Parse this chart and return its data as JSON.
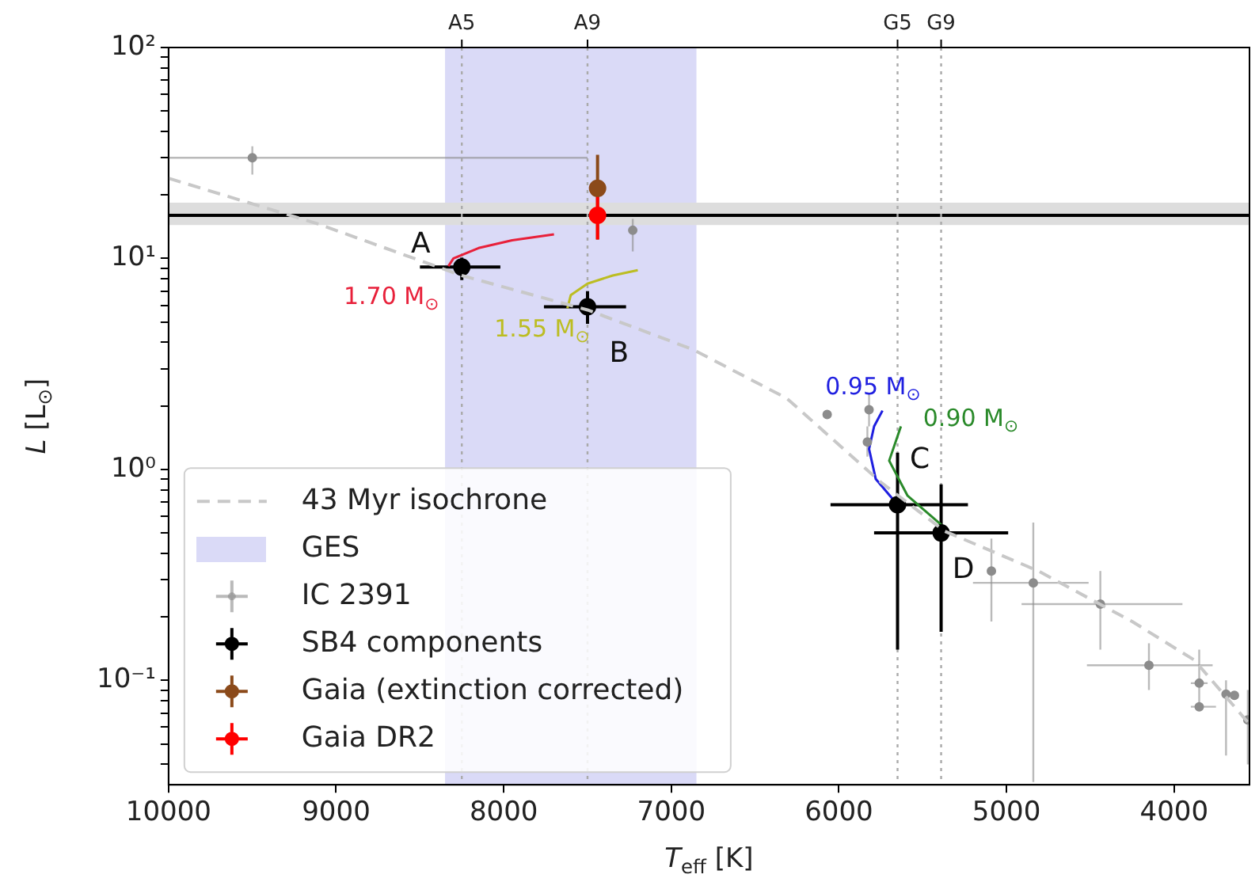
{
  "chart_data": {
    "type": "scatter",
    "xlabel": "T$_{eff}$ [K]",
    "ylabel": "L [L$_{⊙}$]",
    "log": "y",
    "grid": false,
    "legend": "bottom left",
    "xlim": [
      10000,
      3550
    ],
    "xticks": [
      10000,
      9000,
      8000,
      7000,
      6000,
      5000,
      4000
    ],
    "ylim": [
      0.032,
      100
    ],
    "yticks": [
      {
        "value": 0.04,
        "label": null
      },
      {
        "value": 0.05,
        "label": null
      },
      {
        "value": 0.06,
        "label": null
      },
      {
        "value": 0.07,
        "label": null
      },
      {
        "value": 0.08,
        "label": null
      },
      {
        "value": 0.09,
        "label": null
      },
      {
        "value": 0.1,
        "label": "10⁻¹"
      },
      {
        "value": 0.2,
        "label": null
      },
      {
        "value": 0.3,
        "label": null
      },
      {
        "value": 0.4,
        "label": null
      },
      {
        "value": 0.5,
        "label": null
      },
      {
        "value": 0.6,
        "label": null
      },
      {
        "value": 0.7,
        "label": null
      },
      {
        "value": 0.8,
        "label": null
      },
      {
        "value": 0.9,
        "label": null
      },
      {
        "value": 1,
        "label": "10⁰"
      },
      {
        "value": 2,
        "label": null
      },
      {
        "value": 3,
        "label": null
      },
      {
        "value": 4,
        "label": null
      },
      {
        "value": 5,
        "label": null
      },
      {
        "value": 6,
        "label": null
      },
      {
        "value": 7,
        "label": null
      },
      {
        "value": 8,
        "label": null
      },
      {
        "value": 9,
        "label": null
      },
      {
        "value": 10,
        "label": "10¹"
      },
      {
        "value": 20,
        "label": null
      },
      {
        "value": 30,
        "label": null
      },
      {
        "value": 40,
        "label": null
      },
      {
        "value": 50,
        "label": null
      },
      {
        "value": 60,
        "label": null
      },
      {
        "value": 70,
        "label": null
      },
      {
        "value": 80,
        "label": null
      },
      {
        "value": 90,
        "label": null
      },
      {
        "value": 100,
        "label": "10²"
      }
    ],
    "bands": [
      {
        "axis": "x",
        "from": 8350,
        "to": 6850,
        "label": "GES",
        "color": "#dadaf7"
      },
      {
        "axis": "y",
        "from": 14.4,
        "to": 18.4,
        "color": "#dddddd"
      }
    ],
    "ref_lines": [
      {
        "axis": "y",
        "value": 16,
        "color": "#000000",
        "line_style": "solid"
      },
      {
        "axis": "x",
        "value": 8250,
        "label": "A5",
        "color": "#aaaaaa",
        "line_style": "dotted"
      },
      {
        "axis": "x",
        "value": 7500,
        "label": "A9",
        "color": "#aaaaaa",
        "line_style": "dotted"
      },
      {
        "axis": "x",
        "value": 5650,
        "label": "G5",
        "color": "#aaaaaa",
        "line_style": "dotted"
      },
      {
        "axis": "x",
        "value": 5390,
        "label": "G9",
        "color": "#aaaaaa",
        "line_style": "dotted"
      }
    ],
    "annotations": [
      {
        "text": "A",
        "x": 8250,
        "y": 9.1
      },
      {
        "text": "B",
        "x": 7500,
        "y": 5.9
      },
      {
        "text": "C",
        "x": 5650,
        "y": 0.68
      },
      {
        "text": "D",
        "x": 5390,
        "y": 0.5
      }
    ],
    "series": [
      {
        "name": "43 Myr isochrone",
        "type": "line",
        "color": "#c8c8c8",
        "line_style": "dashed",
        "marker": "none",
        "x": [
          10000,
          9110,
          8250,
          7500,
          6870,
          6310,
          5750,
          5370,
          4810,
          4250,
          3880,
          3550
        ],
        "values": [
          24,
          14.6,
          8.3,
          5.7,
          3.7,
          2.17,
          0.87,
          0.51,
          0.33,
          0.19,
          0.125,
          0.062
        ]
      },
      {
        "name": "IC 2391",
        "color": "#8c8c8c",
        "marker": "circle",
        "x": [
          9500,
          7230,
          6070,
          5820,
          5830,
          5090,
          4840,
          4440,
          4150,
          3850,
          3850,
          3690,
          3640,
          3560
        ],
        "values": [
          30,
          13.6,
          1.82,
          1.92,
          1.35,
          0.33,
          0.29,
          0.23,
          0.118,
          0.097,
          0.075,
          0.086,
          0.085,
          0.065
        ],
        "errors": [
          [
            25,
            34
          ],
          [
            10.8,
            15.4
          ],
          null,
          [
            1.6,
            2.3
          ],
          [
            1.15,
            1.6
          ],
          [
            0.19,
            0.47
          ],
          [
            0.033,
            0.56
          ],
          [
            0.14,
            0.33
          ],
          [
            0.09,
            0.15
          ],
          [
            0.073,
            0.14
          ],
          null,
          [
            0.044,
            0.1
          ],
          null,
          [
            0.04,
            0.09
          ]
        ],
        "xerrors": [
          [
            7500,
            10000
          ],
          null,
          null,
          null,
          null,
          null,
          [
            4510,
            5200
          ],
          [
            3950,
            4910
          ],
          [
            3770,
            4520
          ],
          [
            3800,
            3900
          ],
          [
            3750,
            3900
          ],
          null,
          null,
          null
        ]
      },
      {
        "name": "SB4 components",
        "color": "#000000",
        "marker": "circle",
        "x": [
          8250,
          7500,
          5650,
          5390
        ],
        "values": [
          9.1,
          5.9,
          0.68,
          0.5
        ],
        "errors": [
          [
            7.9,
            10.1
          ],
          [
            4.9,
            7.0
          ],
          [
            0.14,
            1.2
          ],
          [
            0.17,
            0.85
          ]
        ],
        "xerrors": [
          [
            8020,
            8500
          ],
          [
            7270,
            7760
          ],
          [
            5230,
            6050
          ],
          [
            4990,
            5790
          ]
        ]
      },
      {
        "name": "Gaia (extinction corrected)",
        "color": "#8b4a1a",
        "marker": "circle",
        "x": [
          7440
        ],
        "values": [
          21.5
        ],
        "errors": [
          [
            12.3,
            31
          ]
        ]
      },
      {
        "name": "Gaia DR2",
        "color": "#ff0000",
        "marker": "circle",
        "x": [
          7440
        ],
        "values": [
          16
        ],
        "errors": [
          [
            12.3,
            20
          ]
        ]
      },
      {
        "name": "1.70 M$_{⊙}$",
        "type": "line",
        "color": "#e8203a",
        "marker": "none",
        "x": [
          8330,
          8300,
          8150,
          7950,
          7700
        ],
        "values": [
          9.2,
          10,
          11.2,
          12.2,
          13
        ]
      },
      {
        "name": "1.55 M$_{⊙}$",
        "type": "line",
        "color": "#bcbd22",
        "marker": "none",
        "x": [
          7620,
          7600,
          7500,
          7350,
          7200
        ],
        "values": [
          5.8,
          6.7,
          7.6,
          8.3,
          8.8
        ]
      },
      {
        "name": "0.95 M$_{⊙}$",
        "type": "line",
        "color": "#1f1fe0",
        "marker": "none",
        "x": [
          5740,
          5790,
          5820,
          5780,
          5650
        ],
        "values": [
          1.9,
          1.6,
          1.25,
          0.9,
          0.68
        ]
      },
      {
        "name": "0.90 M$_{⊙}$",
        "type": "line",
        "color": "#2a8a2a",
        "marker": "none",
        "x": [
          5630,
          5700,
          5590,
          5370
        ],
        "values": [
          1.6,
          1.1,
          0.75,
          0.53
        ]
      }
    ]
  }
}
